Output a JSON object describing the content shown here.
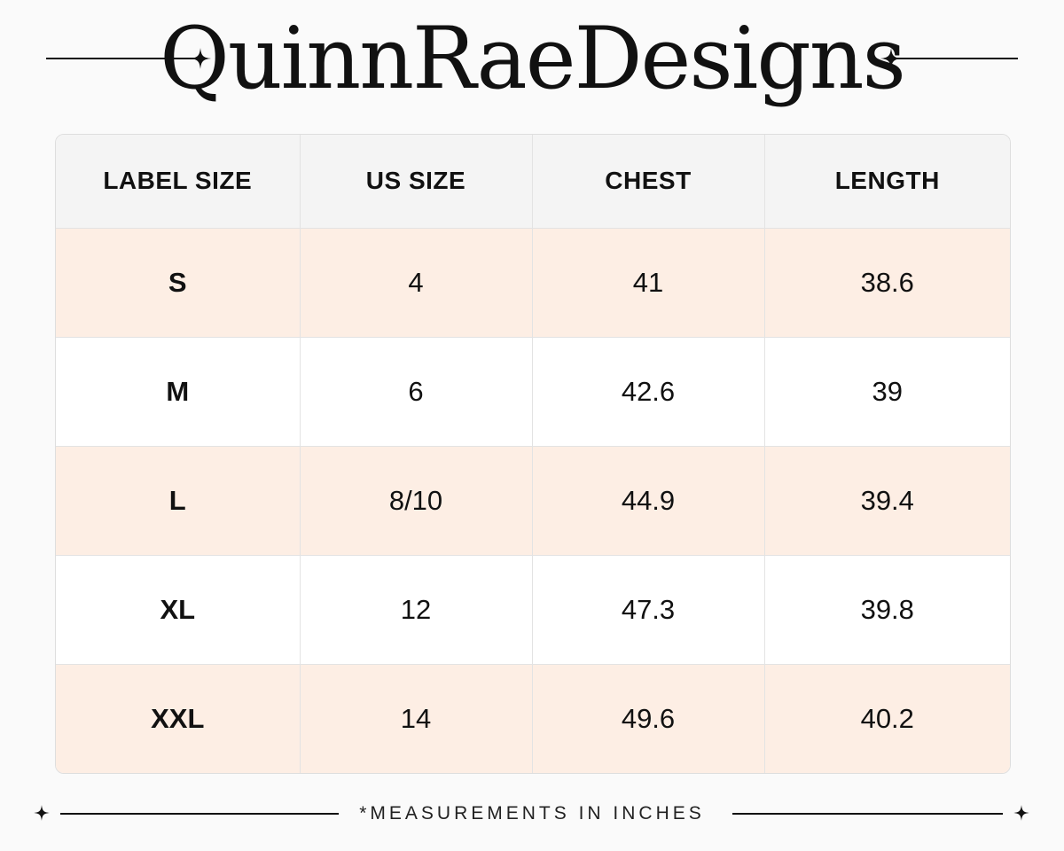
{
  "brand": {
    "title": "QuinnRaeDesigns"
  },
  "icons": {
    "ornament": "four-point-star-icon"
  },
  "colors": {
    "shaded_row": "#fdeee4",
    "header_row": "#f4f4f4",
    "text": "#111111"
  },
  "table": {
    "headers": [
      "LABEL SIZE",
      "US SIZE",
      "CHEST",
      "LENGTH"
    ],
    "rows": [
      {
        "label": "S",
        "us": "4",
        "chest": "41",
        "length": "38.6"
      },
      {
        "label": "M",
        "us": "6",
        "chest": "42.6",
        "length": "39"
      },
      {
        "label": "L",
        "us": "8/10",
        "chest": "44.9",
        "length": "39.4"
      },
      {
        "label": "XL",
        "us": "12",
        "chest": "47.3",
        "length": "39.8"
      },
      {
        "label": "XXL",
        "us": "14",
        "chest": "49.6",
        "length": "40.2"
      }
    ]
  },
  "footer": {
    "note": "*MEASUREMENTS IN INCHES"
  }
}
